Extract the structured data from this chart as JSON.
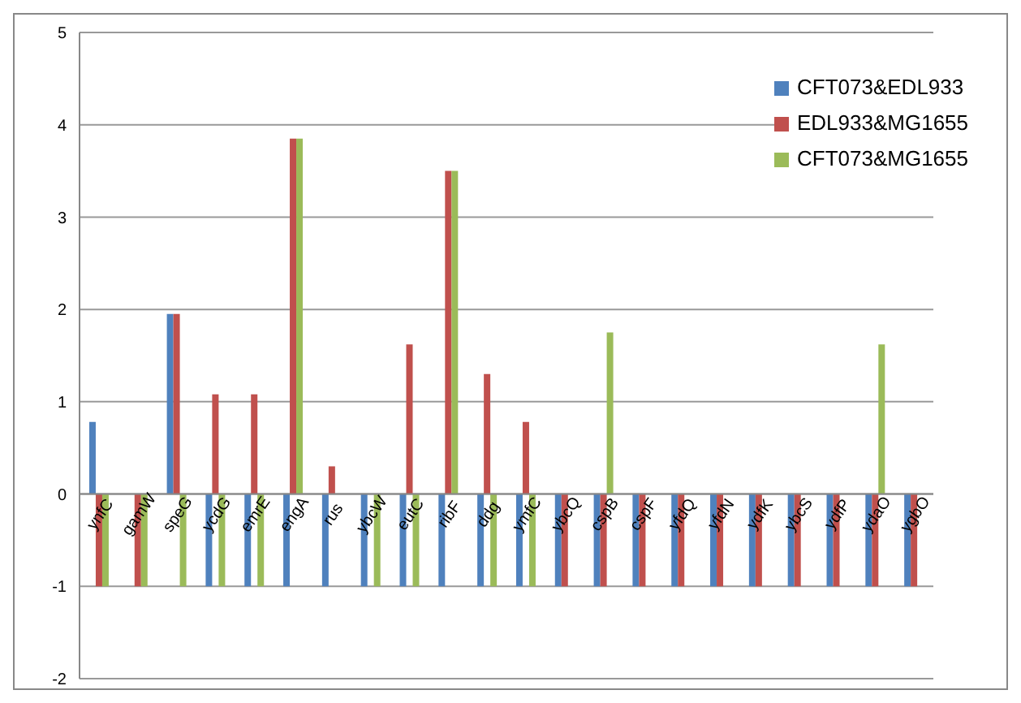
{
  "chart_data": {
    "type": "bar",
    "categories": [
      "ynfC",
      "gamW",
      "speG",
      "ycdG",
      "emrE",
      "engA",
      "rus",
      "ybcW",
      "eutC",
      "ribF",
      "ddg",
      "ymfC",
      "ybcQ",
      "cspB",
      "cspF",
      "yfdQ",
      "yfdN",
      "ydfK",
      "ybcS",
      "ydfP",
      "ydaO",
      "ygbO"
    ],
    "series": [
      {
        "name": "CFT073&EDL933",
        "color": "#4f81bd",
        "values": [
          0.78,
          null,
          1.95,
          -1,
          -1,
          -1,
          -1,
          -1,
          -1,
          -1,
          -1,
          -1,
          -1,
          -1,
          -1,
          -1,
          -1,
          -1,
          -1,
          -1,
          -1,
          -1
        ]
      },
      {
        "name": "EDL933&MG1655",
        "color": "#c0504d",
        "values": [
          -1,
          -1,
          1.95,
          1.08,
          1.08,
          3.85,
          0.3,
          null,
          1.62,
          3.5,
          1.3,
          0.78,
          -1,
          -1,
          -1,
          -1,
          -1,
          -1,
          -1,
          -1,
          -1,
          -1
        ]
      },
      {
        "name": "CFT073&MG1655",
        "color": "#9bbb59",
        "values": [
          -1,
          -1,
          -1,
          -1,
          -1,
          3.85,
          null,
          -1,
          -1,
          3.5,
          -1,
          -1,
          null,
          1.75,
          null,
          null,
          null,
          null,
          null,
          null,
          1.62,
          null
        ]
      }
    ],
    "ylim": [
      -2,
      5
    ],
    "yticks": [
      -2,
      -1,
      0,
      1,
      2,
      3,
      4,
      5
    ],
    "grid": "y",
    "legend": "top right"
  }
}
